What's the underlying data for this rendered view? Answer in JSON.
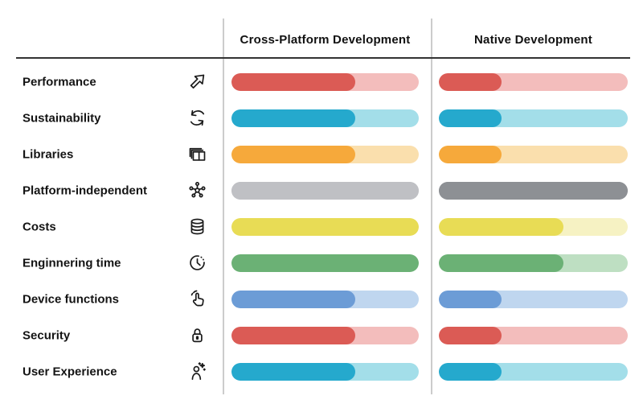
{
  "table": {
    "columns": [
      {
        "label": "Cross-Platform Development"
      },
      {
        "label": "Native Development"
      }
    ],
    "rows": [
      {
        "label": "Performance",
        "icon": "trend-arrow-icon",
        "cross_platform": {
          "percent": 66,
          "fill": "#DB5B55",
          "track": "#F3BDBC"
        },
        "native": {
          "percent": 33,
          "fill": "#DB5B55",
          "track": "#F3BDBC"
        }
      },
      {
        "label": "Sustainability",
        "icon": "refresh-cycle-icon",
        "cross_platform": {
          "percent": 66,
          "fill": "#25A9CD",
          "track": "#A3DEE9"
        },
        "native": {
          "percent": 33,
          "fill": "#25A9CD",
          "track": "#A3DEE9"
        }
      },
      {
        "label": "Libraries",
        "icon": "stacked-cards-icon",
        "cross_platform": {
          "percent": 66,
          "fill": "#F6A93B",
          "track": "#FADFAD"
        },
        "native": {
          "percent": 33,
          "fill": "#F6A93B",
          "track": "#FADFAD"
        }
      },
      {
        "label": "Platform-independent",
        "icon": "network-hub-icon",
        "cross_platform": {
          "percent": 100,
          "fill": "#BFC0C4",
          "track": "#BFC0C4"
        },
        "native": {
          "percent": 100,
          "fill": "#8D9094",
          "track": "#8D9094"
        }
      },
      {
        "label": "Costs",
        "icon": "database-coins-icon",
        "cross_platform": {
          "percent": 100,
          "fill": "#E8DC55",
          "track": "#F6F2C3"
        },
        "native": {
          "percent": 66,
          "fill": "#E8DC55",
          "track": "#F6F2C3"
        }
      },
      {
        "label": "Enginnering time",
        "icon": "clock-icon",
        "cross_platform": {
          "percent": 100,
          "fill": "#6BB175",
          "track": "#BEDFC2"
        },
        "native": {
          "percent": 66,
          "fill": "#6BB175",
          "track": "#BEDFC2"
        }
      },
      {
        "label": "Device functions",
        "icon": "tap-hand-icon",
        "cross_platform": {
          "percent": 66,
          "fill": "#6C9CD6",
          "track": "#BFD6EF"
        },
        "native": {
          "percent": 33,
          "fill": "#6C9CD6",
          "track": "#BFD6EF"
        }
      },
      {
        "label": "Security",
        "icon": "padlock-icon",
        "cross_platform": {
          "percent": 66,
          "fill": "#DB5B55",
          "track": "#F3BDBC"
        },
        "native": {
          "percent": 33,
          "fill": "#DB5B55",
          "track": "#F3BDBC"
        }
      },
      {
        "label": "User Experience",
        "icon": "person-sparkle-icon",
        "cross_platform": {
          "percent": 66,
          "fill": "#25A9CD",
          "track": "#A3DEE9"
        },
        "native": {
          "percent": 33,
          "fill": "#25A9CD",
          "track": "#A3DEE9"
        }
      }
    ]
  },
  "colors": {
    "text": "#121212",
    "header_rule": "#333333",
    "column_divider": "#CCCCCC",
    "background": "#FFFFFF"
  },
  "chart_data": {
    "type": "bar",
    "orientation": "horizontal",
    "title": "",
    "categories": [
      "Performance",
      "Sustainability",
      "Libraries",
      "Platform-independent",
      "Costs",
      "Enginnering time",
      "Device functions",
      "Security",
      "User Experience"
    ],
    "series": [
      {
        "name": "Cross-Platform Development",
        "values": [
          66,
          66,
          66,
          100,
          100,
          100,
          66,
          66,
          66
        ]
      },
      {
        "name": "Native Development",
        "values": [
          33,
          33,
          33,
          100,
          66,
          66,
          33,
          33,
          33
        ]
      }
    ],
    "value_range": [
      0,
      100
    ],
    "grid": false,
    "legend_position": "column-headers",
    "notes": "Each row uses its own hue; filled segment over a pale track. Platform-independent row: cross-platform bar fully light gray (#BFC0C4), native bar fully dark gray (#8D9094)."
  }
}
